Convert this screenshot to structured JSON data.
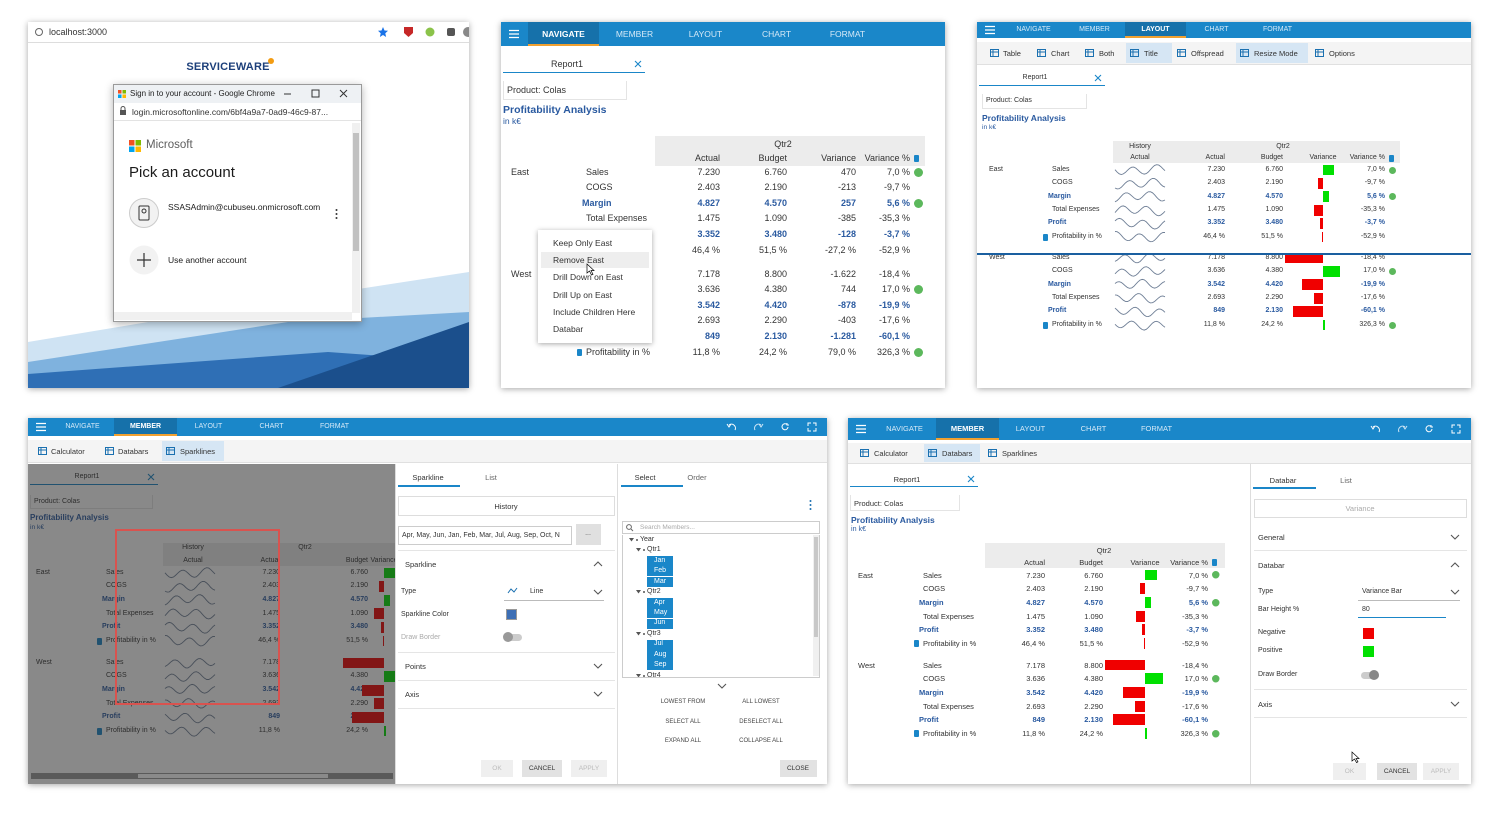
{
  "browser": {
    "address": "localhost:3000",
    "brand": "SERVICEWARE",
    "popup_title": "Sign in to your account - Google Chrome",
    "popup_address": "login.microsoftonline.com/6bf4a9a7-0ad9-46c9-87...",
    "vendor": "Microsoft",
    "heading": "Pick an account",
    "account": "SSASAdmin@cubuseu.onmicrosoft.com",
    "other_account": "Use another account"
  },
  "ribbon": {
    "tabs": [
      "NAVIGATE",
      "MEMBER",
      "LAYOUT",
      "CHART",
      "FORMAT"
    ]
  },
  "report": {
    "tab": "Report1",
    "product": "Product: Colas",
    "title": "Profitability Analysis",
    "unit": "in k€",
    "period": "Qtr2",
    "history": "History",
    "columns": [
      "Actual",
      "Budget",
      "Variance",
      "Variance %"
    ],
    "regions": [
      {
        "name": "East",
        "rows": [
          {
            "measure": "Sales",
            "values": [
              "7.230",
              "6.760",
              "470",
              "7,0 %"
            ]
          },
          {
            "measure": "COGS",
            "values": [
              "2.403",
              "2.190",
              "-213",
              "-9,7 %"
            ]
          },
          {
            "measure": "Margin",
            "values": [
              "4.827",
              "4.570",
              "257",
              "5,6 %"
            ]
          },
          {
            "measure": "Total Expenses",
            "values": [
              "1.475",
              "1.090",
              "-385",
              "-35,3 %"
            ]
          },
          {
            "measure": "Profit",
            "values": [
              "3.352",
              "3.480",
              "-128",
              "-3,7 %"
            ]
          },
          {
            "measure": "Profitability in %",
            "values": [
              "46,4 %",
              "51,5 %",
              "-27,2 %",
              "-52,9 %"
            ]
          }
        ]
      },
      {
        "name": "West",
        "rows": [
          {
            "measure": "Sales",
            "values": [
              "7.178",
              "8.800",
              "-1.622",
              "-18,4 %"
            ]
          },
          {
            "measure": "COGS",
            "values": [
              "3.636",
              "4.380",
              "744",
              "17,0 %"
            ]
          },
          {
            "measure": "Margin",
            "values": [
              "3.542",
              "4.420",
              "-878",
              "-19,9 %"
            ]
          },
          {
            "measure": "Total Expenses",
            "values": [
              "2.693",
              "2.290",
              "-403",
              "-17,6 %"
            ]
          },
          {
            "measure": "Profit",
            "values": [
              "849",
              "2.130",
              "-1.281",
              "-60,1 %"
            ]
          },
          {
            "measure": "Profitability in %",
            "values": [
              "11,8 %",
              "24,2 %",
              "79,0 %",
              "326,3 %"
            ]
          }
        ]
      }
    ]
  },
  "context_menu": {
    "items": [
      "Keep Only East",
      "Remove East",
      "Drill Down on East",
      "Drill Up on East",
      "Include Children Here",
      "Databar"
    ]
  },
  "layout_toolbar": {
    "items": [
      "Table",
      "Chart",
      "Both",
      "Title",
      "Offspread",
      "Resize Mode",
      "Options"
    ]
  },
  "member_toolbar": {
    "items": [
      "Calculator",
      "Databars",
      "Sparklines"
    ]
  },
  "sparkline_dialog": {
    "tabs": [
      "Sparkline",
      "List"
    ],
    "member": "History",
    "members_list": "Apr, May, Jun, Jan, Feb, Mar, Jul, Aug, Sep, Oct, N",
    "browse": "...",
    "section": "Sparkline",
    "type_label": "Type",
    "type_value": "Line",
    "color_label": "Sparkline Color",
    "border_label": "Draw Border",
    "points": "Points",
    "axis": "Axis",
    "buttons": [
      "OK",
      "CANCEL",
      "APPLY"
    ]
  },
  "member_selector": {
    "tabs": [
      "Select",
      "Order"
    ],
    "search": "Search Members...",
    "tree": {
      "label": "Year",
      "children": [
        {
          "label": "Qtr1",
          "children": [
            {
              "label": "Jan"
            },
            {
              "label": "Feb"
            },
            {
              "label": "Mar"
            }
          ]
        },
        {
          "label": "Qtr2",
          "children": [
            {
              "label": "Apr"
            },
            {
              "label": "May"
            },
            {
              "label": "Jun"
            }
          ]
        },
        {
          "label": "Qtr3",
          "children": [
            {
              "label": "Jul"
            },
            {
              "label": "Aug"
            },
            {
              "label": "Sep"
            }
          ]
        },
        {
          "label": "Qtr4"
        }
      ]
    },
    "actions": [
      "LOWEST FROM",
      "ALL LOWEST",
      "SELECT ALL",
      "DESELECT ALL",
      "EXPAND ALL",
      "COLLAPSE ALL"
    ],
    "close": "CLOSE"
  },
  "databar_dialog": {
    "tabs": [
      "Databar",
      "List"
    ],
    "member": "Variance",
    "general": "General",
    "section": "Databar",
    "type_label": "Type",
    "type_value": "Variance Bar",
    "height_label": "Bar Height %",
    "height_value": "80",
    "negative": "Negative",
    "positive": "Positive",
    "border_label": "Draw Border",
    "axis": "Axis",
    "buttons": [
      "OK",
      "CANCEL",
      "APPLY"
    ]
  }
}
